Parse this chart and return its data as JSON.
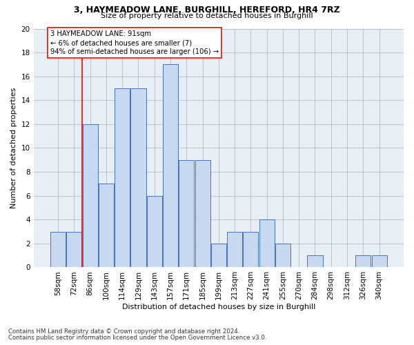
{
  "title1": "3, HAYMEADOW LANE, BURGHILL, HEREFORD, HR4 7RZ",
  "title2": "Size of property relative to detached houses in Burghill",
  "xlabel": "Distribution of detached houses by size in Burghill",
  "ylabel": "Number of detached properties",
  "categories": [
    "58sqm",
    "72sqm",
    "86sqm",
    "100sqm",
    "114sqm",
    "129sqm",
    "143sqm",
    "157sqm",
    "171sqm",
    "185sqm",
    "199sqm",
    "213sqm",
    "227sqm",
    "241sqm",
    "255sqm",
    "270sqm",
    "284sqm",
    "298sqm",
    "312sqm",
    "326sqm",
    "340sqm"
  ],
  "values": [
    3,
    3,
    12,
    7,
    15,
    15,
    6,
    17,
    9,
    9,
    2,
    3,
    3,
    4,
    2,
    0,
    1,
    0,
    0,
    1,
    1
  ],
  "bar_color": "#c6d9f0",
  "bar_edge_color": "#4472c4",
  "annotation_line1": "3 HAYMEADOW LANE: 91sqm",
  "annotation_line2": "← 6% of detached houses are smaller (7)",
  "annotation_line3": "94% of semi-detached houses are larger (106) →",
  "ylim": [
    0,
    20
  ],
  "yticks": [
    0,
    2,
    4,
    6,
    8,
    10,
    12,
    14,
    16,
    18,
    20
  ],
  "red_line_x": 1.5,
  "footnote1": "Contains HM Land Registry data © Crown copyright and database right 2024.",
  "footnote2": "Contains public sector information licensed under the Open Government Licence v3.0.",
  "bg_color": "#e8eef5"
}
